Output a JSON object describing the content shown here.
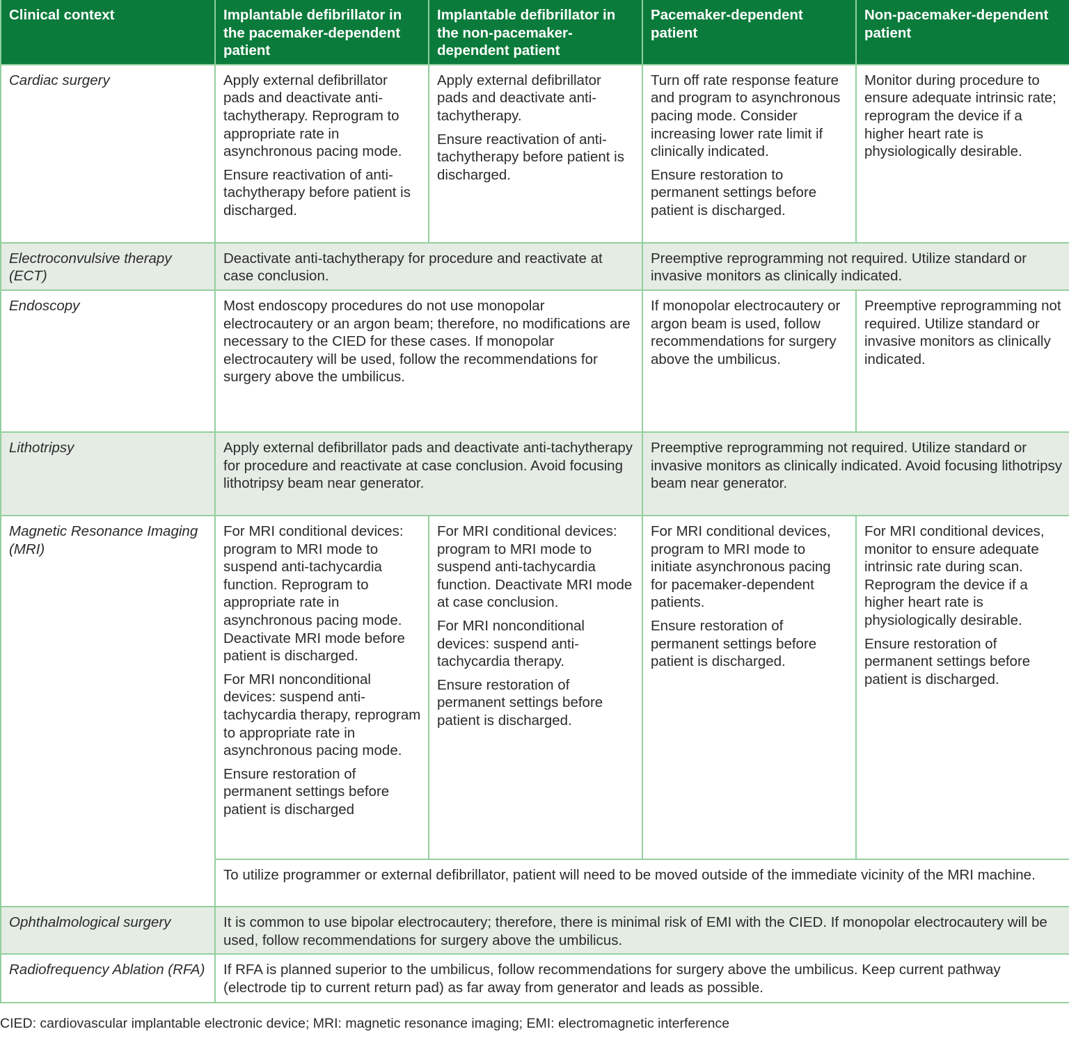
{
  "headers": [
    "Clinical context",
    "Implantable defibrillator in the pacemaker-dependent patient",
    "Implantable defibrillator in the non-pacemaker-dependent patient",
    "Pacemaker-dependent patient",
    "Non-pacemaker-dependent patient"
  ],
  "rows": {
    "cardiac": {
      "context": "Cardiac surgery",
      "c1": [
        "Apply external defibrillator pads and deactivate anti-tachytherapy.  Reprogram to appropriate rate in asynchronous pacing mode.",
        "Ensure reactivation of anti-tachytherapy before patient is discharged."
      ],
      "c2": [
        "Apply external defibrillator pads and deactivate anti-tachytherapy.",
        "Ensure reactivation of anti-tachytherapy before patient is discharged."
      ],
      "c3": [
        "Turn off rate response feature and program to asynchronous pacing mode.  Consider increasing lower rate limit if clinically indicated.",
        "Ensure restoration to permanent settings before patient is discharged."
      ],
      "c4": [
        "Monitor during procedure to ensure adequate intrinsic rate; reprogram the device if a higher heart rate is physiologically desirable."
      ]
    },
    "ect": {
      "context": "Electroconvulsive therapy (ECT)",
      "icd": "Deactivate anti-tachytherapy for procedure and reactivate at case conclusion.",
      "pm": "Preemptive reprogramming not required. Utilize standard or invasive monitors as clinically indicated."
    },
    "endoscopy": {
      "context": "Endoscopy",
      "icd": "Most endoscopy procedures do not use monopolar electrocautery or an argon beam; therefore, no modifications are necessary to the CIED for these cases. If monopolar electrocautery will be used, follow the recommendations for surgery above the umbilicus.",
      "c3": "If monopolar electrocautery or argon beam is used, follow recommendations for surgery above the umbilicus.",
      "c4": "Preemptive reprogramming not required. Utilize standard or invasive monitors as clinically indicated."
    },
    "litho": {
      "context": "Lithotripsy",
      "icd": "Apply external defibrillator pads and deactivate anti-tachytherapy for procedure and reactivate at case conclusion. Avoid focusing lithotripsy beam near generator.",
      "pm": "Preemptive reprogramming not required. Utilize standard or invasive monitors as clinically indicated. Avoid focusing lithotripsy beam near generator."
    },
    "mri": {
      "context": "Magnetic Resonance Imaging (MRI)",
      "c1": [
        "For MRI conditional devices: program to MRI mode to suspend anti-tachycardia function. Reprogram to appropriate rate in asynchronous pacing mode. Deactivate MRI mode before patient is discharged.",
        "For MRI nonconditional devices: suspend anti-tachycardia therapy, reprogram to appropriate rate in asynchronous pacing mode.",
        "Ensure restoration of permanent settings before patient is discharged"
      ],
      "c2": [
        "For MRI conditional devices: program to MRI mode to suspend anti-tachycardia function. Deactivate MRI mode at case conclusion.",
        "For MRI nonconditional devices: suspend anti-tachycardia therapy.",
        "Ensure restoration of permanent settings before patient is discharged."
      ],
      "c3": [
        "For MRI conditional devices, program to MRI mode to initiate asynchronous pacing for pacemaker-dependent patients.",
        "Ensure restoration of permanent settings before patient is discharged."
      ],
      "c4": [
        "For MRI conditional devices, monitor to ensure adequate intrinsic rate during scan. Reprogram the device if a higher heart rate is physiologically desirable.",
        "Ensure restoration of permanent settings before patient is discharged."
      ],
      "all": "To utilize programmer or external defibrillator, patient will need to be moved outside of the immediate vicinity of the MRI machine."
    },
    "ophth": {
      "context": "Ophthalmological surgery",
      "all": "It is common to use bipolar electrocautery; therefore, there is minimal risk of EMI with the CIED.  If monopolar electrocautery will be used, follow recommendations for surgery above the umbilicus."
    },
    "rfa": {
      "context": "Radiofrequency Ablation (RFA)",
      "all": "If RFA is planned superior to the umbilicus, follow recommendations for surgery above the umbilicus. Keep current pathway (electrode tip to current return pad) as far away from generator and leads as possible."
    }
  },
  "footnote": "CIED: cardiovascular implantable electronic device; MRI: magnetic resonance imaging; EMI: electromagnetic interference",
  "colors": {
    "header": "#0b7b3b",
    "shade": "#e4ece4",
    "border": "#93cf9e"
  }
}
